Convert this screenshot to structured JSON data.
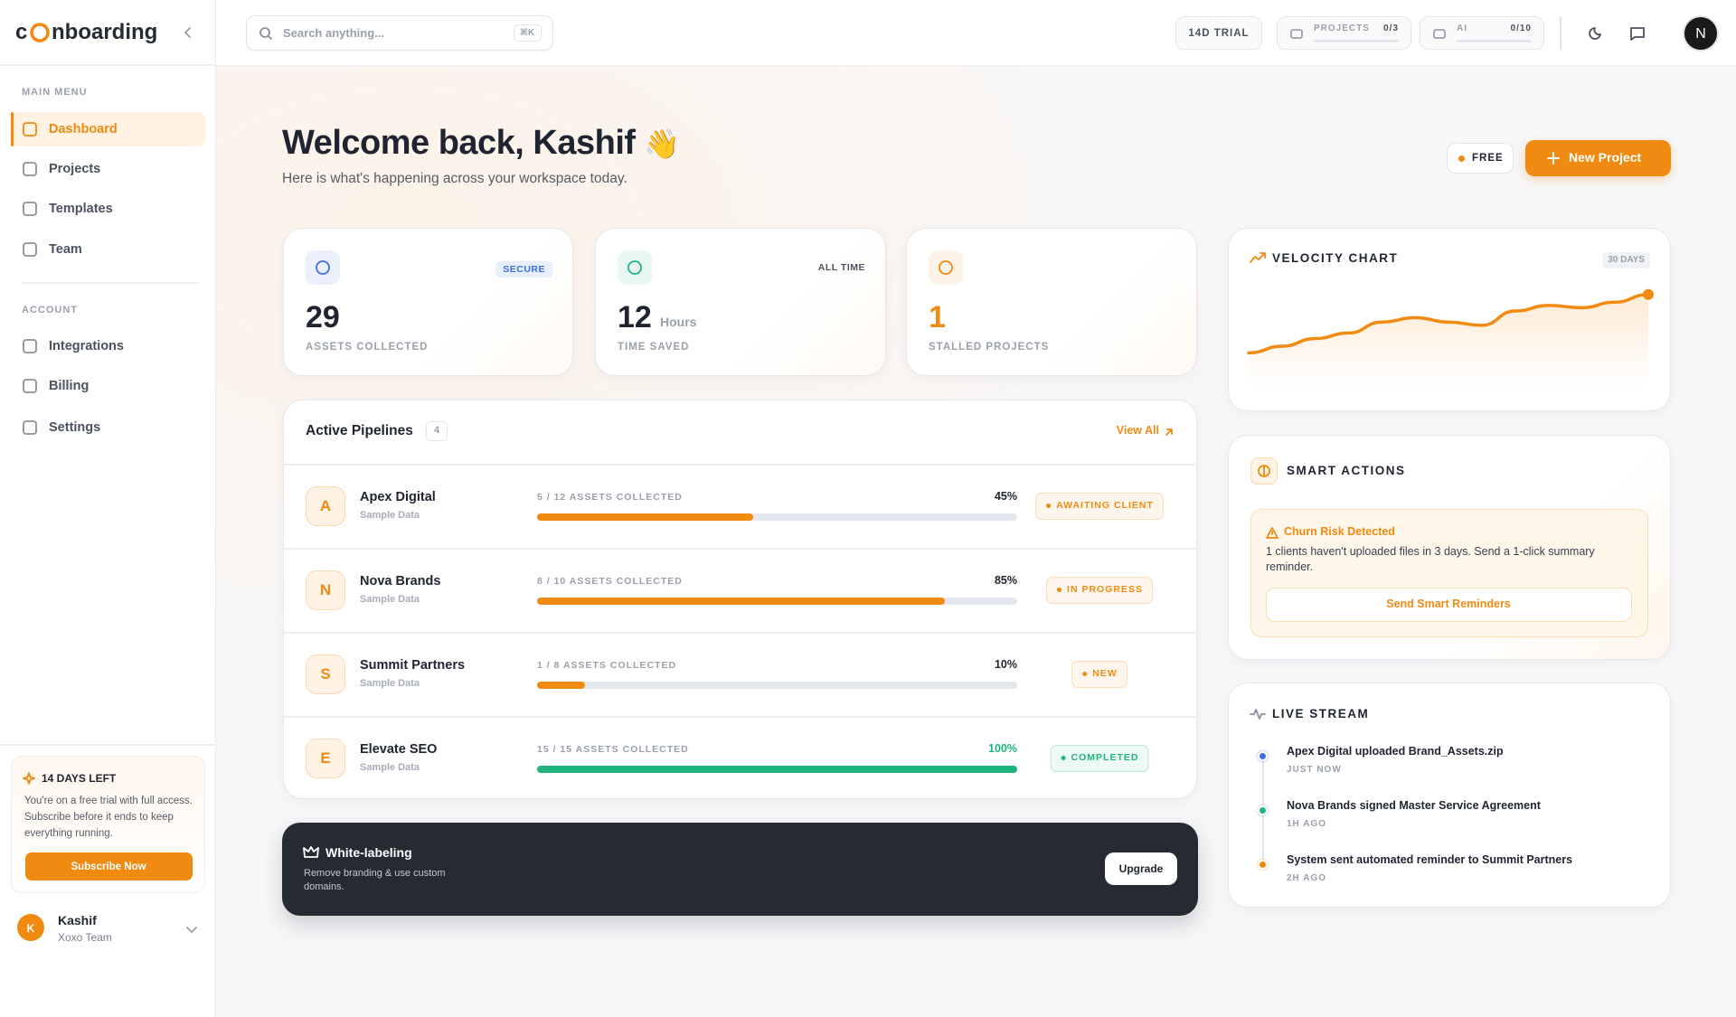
{
  "sidebar": {
    "brand_prefix": "c",
    "brand_suffix": "nboarding",
    "main_menu_label": "MAIN MENU",
    "main_menu": [
      "Dashboard",
      "Projects",
      "Templates",
      "Team"
    ],
    "account_label": "ACCOUNT",
    "account_menu": [
      "Integrations",
      "Billing",
      "Settings"
    ],
    "trial": {
      "title": "14 DAYS LEFT",
      "text": "You're on a free trial with full access. Subscribe before it ends to keep everything running.",
      "button": "Subscribe Now"
    },
    "user": {
      "initial": "K",
      "name": "Kashif",
      "team": "Xoxo Team"
    }
  },
  "topbar": {
    "search_placeholder": "Search anything...",
    "shortcut": "⌘K",
    "trial_badge": "14D TRIAL",
    "projects_label": "PROJECTS",
    "projects_count": "0/3",
    "ai_label": "AI",
    "ai_count": "0/10",
    "avatar": "N"
  },
  "header": {
    "title": "Welcome back, Kashif",
    "emoji": "👋",
    "subtitle": "Here is what's happening across your workspace today.",
    "plan": "FREE",
    "new_project": "New Project"
  },
  "stats": [
    {
      "badge": "SECURE",
      "value": 29,
      "label": "ASSETS COLLECTED",
      "color": "#3b6fe0",
      "value_color": "#1f2430"
    },
    {
      "badge": "ALL TIME",
      "value": 12,
      "unit": "Hours",
      "label": "TIME SAVED",
      "color": "#1fb57a",
      "value_color": "#1f2430"
    },
    {
      "value": 1,
      "label": "STALLED PROJECTS",
      "color": "#f08a10",
      "value_color": "#f08a10"
    }
  ],
  "pipelines": {
    "title": "Active Pipelines",
    "count": 4,
    "view_all": "View All",
    "rows": [
      {
        "initial": "A",
        "name": "Apex Digital",
        "sub": "Sample Data",
        "assets": "5 / 12 ASSETS COLLECTED",
        "progress": 45,
        "progress_label": "45%",
        "status": "AWAITING CLIENT",
        "color": "#f08a10"
      },
      {
        "initial": "N",
        "name": "Nova Brands",
        "sub": "Sample Data",
        "assets": "8 / 10 ASSETS COLLECTED",
        "progress": 85,
        "progress_label": "85%",
        "status": "IN PROGRESS",
        "color": "#f08a10"
      },
      {
        "initial": "S",
        "name": "Summit Partners",
        "sub": "Sample Data",
        "assets": "1 / 8 ASSETS COLLECTED",
        "progress": 10,
        "progress_label": "10%",
        "status": "NEW",
        "color": "#f08a10"
      },
      {
        "initial": "E",
        "name": "Elevate SEO",
        "sub": "Sample Data",
        "assets": "15 / 15 ASSETS COLLECTED",
        "progress": 100,
        "progress_label": "100%",
        "status": "COMPLETED",
        "color": "#1fb57a"
      }
    ]
  },
  "white_label": {
    "title": "White-labeling",
    "text": "Remove branding & use custom domains.",
    "button": "Upgrade"
  },
  "velocity": {
    "title": "VELOCITY CHART",
    "range": "30 DAYS",
    "values": [
      12,
      18,
      25,
      30,
      40,
      44,
      40,
      37,
      50,
      55,
      53,
      58,
      65
    ],
    "color": "#f08a10"
  },
  "smart_actions": {
    "title": "SMART ACTIONS",
    "alert_title": "Churn Risk Detected",
    "alert_text": "1 clients haven't uploaded files in 3 days. Send a 1-click summary reminder.",
    "button": "Send Smart Reminders"
  },
  "live_stream": {
    "title": "LIVE STREAM",
    "events": [
      {
        "text": "Apex Digital uploaded Brand_Assets.zip",
        "time": "JUST NOW",
        "color": "#3b6fe0"
      },
      {
        "text": "Nova Brands signed Master Service Agreement",
        "time": "1H AGO",
        "color": "#1fb57a"
      },
      {
        "text": "System sent automated reminder to Summit Partners",
        "time": "2H AGO",
        "color": "#f08a10"
      }
    ]
  }
}
